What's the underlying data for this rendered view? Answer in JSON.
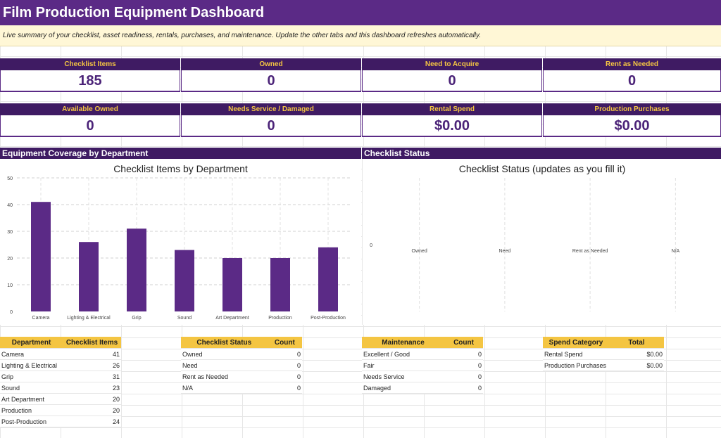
{
  "header": {
    "title": "Film Production Equipment Dashboard",
    "subtitle": "Live summary of your checklist, asset readiness, rentals, purchases, and maintenance. Update the other tabs and this dashboard refreshes automatically."
  },
  "kpis_row1": [
    {
      "label": "Checklist Items",
      "value": "185"
    },
    {
      "label": "Owned",
      "value": "0"
    },
    {
      "label": "Need to Acquire",
      "value": "0"
    },
    {
      "label": "Rent as Needed",
      "value": "0"
    }
  ],
  "kpis_row2": [
    {
      "label": "Available Owned",
      "value": "0"
    },
    {
      "label": "Needs Service / Damaged",
      "value": "0"
    },
    {
      "label": "Rental Spend",
      "value": "$0.00"
    },
    {
      "label": "Production Purchases",
      "value": "$0.00"
    }
  ],
  "sections": {
    "coverage": "Equipment Coverage by Department",
    "status": "Checklist Status"
  },
  "colors": {
    "bar": "#5b2a86",
    "header": "#5b2a86",
    "dark": "#3f1b63",
    "gold": "#f4c542"
  },
  "chart_data": [
    {
      "type": "bar",
      "title": "Checklist Items by Department",
      "categories": [
        "Camera",
        "Lighting & Electrical",
        "Grip",
        "Sound",
        "Art Department",
        "Production",
        "Post-Production"
      ],
      "values": [
        41,
        26,
        31,
        23,
        20,
        20,
        24
      ],
      "ylim": [
        0,
        50
      ],
      "yticks": [
        "0",
        "10",
        "20",
        "30",
        "40",
        "50"
      ],
      "grid": true
    },
    {
      "type": "bar",
      "title": "Checklist Status (updates as you fill it)",
      "categories": [
        "Owned",
        "Need",
        "Rent as Needed",
        "N/A"
      ],
      "values": [
        0,
        0,
        0,
        0
      ],
      "yticks": [
        "0"
      ],
      "grid": true
    }
  ],
  "tables": {
    "department": {
      "headers": [
        "Department",
        "Checklist Items"
      ],
      "rows": [
        [
          "Camera",
          "41"
        ],
        [
          "Lighting & Electrical",
          "26"
        ],
        [
          "Grip",
          "31"
        ],
        [
          "Sound",
          "23"
        ],
        [
          "Art Department",
          "20"
        ],
        [
          "Production",
          "20"
        ],
        [
          "Post-Production",
          "24"
        ]
      ]
    },
    "status": {
      "headers": [
        "Checklist Status",
        "Count"
      ],
      "rows": [
        [
          "Owned",
          "0"
        ],
        [
          "Need",
          "0"
        ],
        [
          "Rent as Needed",
          "0"
        ],
        [
          "N/A",
          "0"
        ]
      ]
    },
    "maintenance": {
      "headers": [
        "Maintenance",
        "Count"
      ],
      "rows": [
        [
          "Excellent / Good",
          "0"
        ],
        [
          "Fair",
          "0"
        ],
        [
          "Needs Service",
          "0"
        ],
        [
          "Damaged",
          "0"
        ]
      ]
    },
    "spend": {
      "headers": [
        "Spend Category",
        "Total"
      ],
      "rows": [
        [
          "Rental Spend",
          "$0.00"
        ],
        [
          "Production Purchases",
          "$0.00"
        ]
      ]
    }
  }
}
